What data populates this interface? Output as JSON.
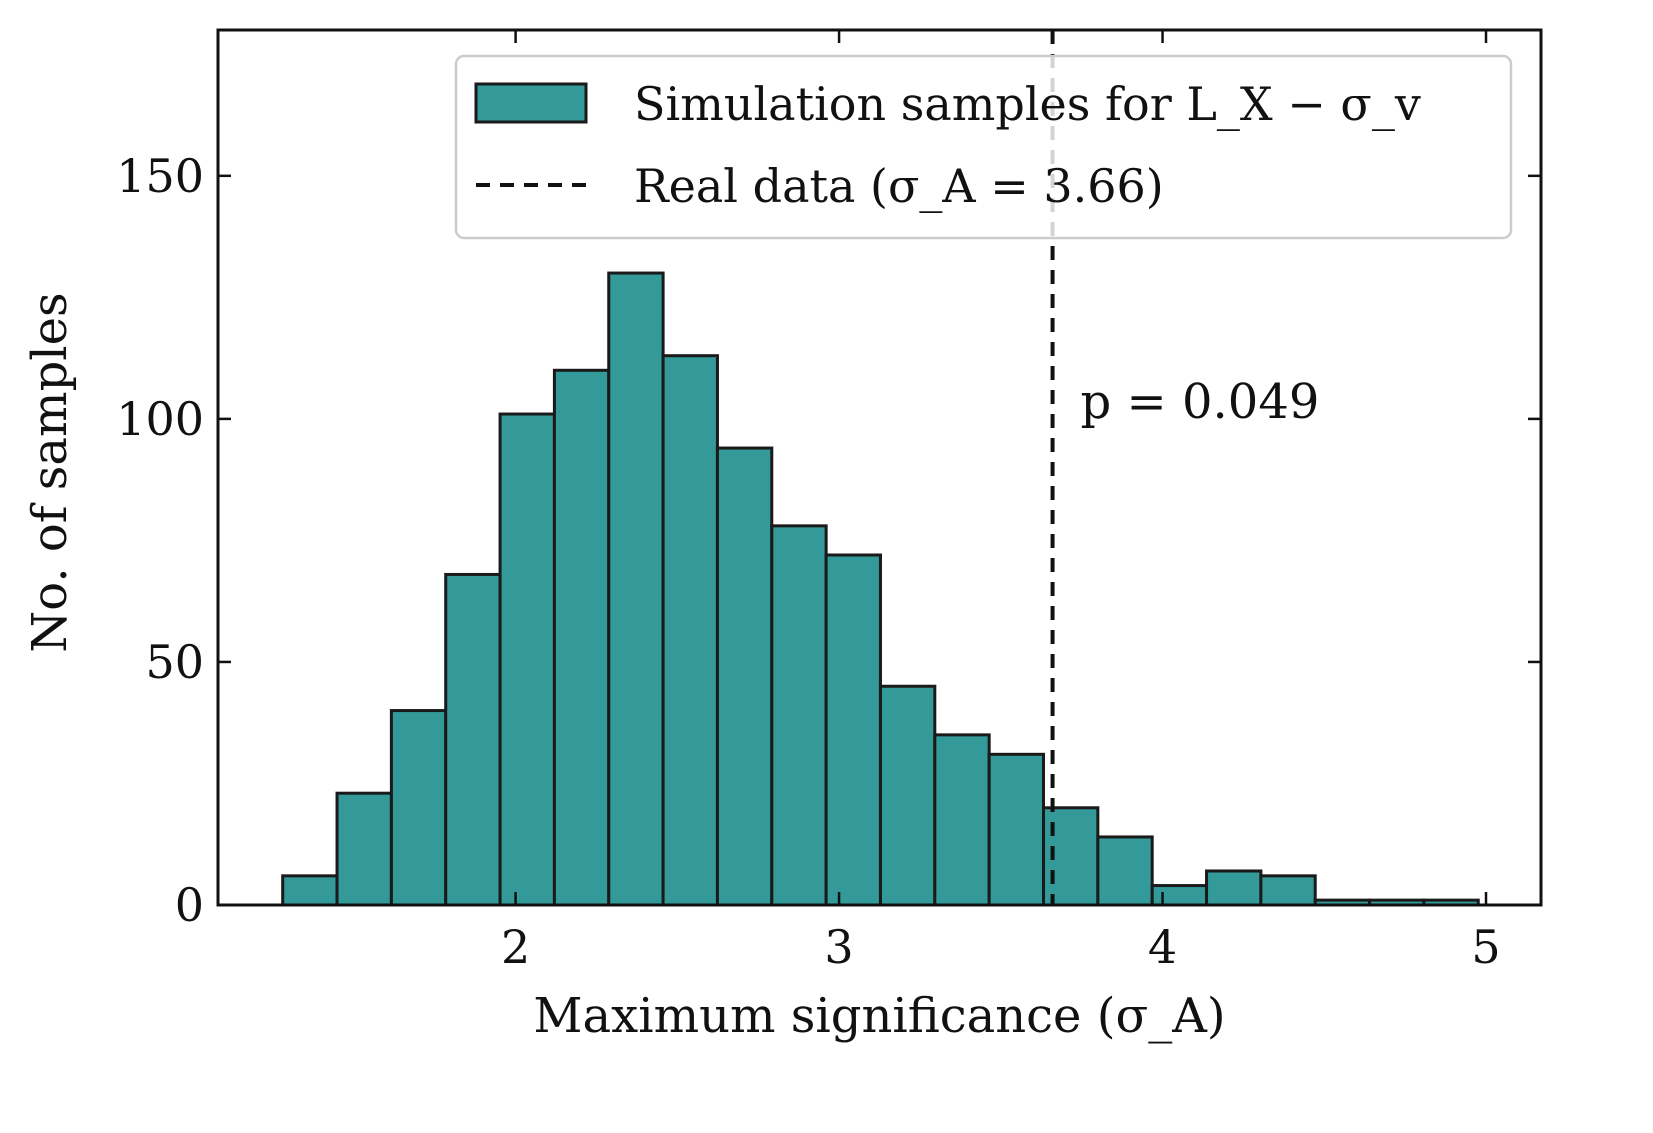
{
  "chart_data": {
    "type": "bar",
    "subtype": "histogram",
    "title": "",
    "xlabel": "Maximum significance (σ_A)",
    "ylabel": "No. of samples",
    "xlim": [
      1.08,
      5.17
    ],
    "ylim": [
      0,
      180
    ],
    "xticks": [
      2,
      3,
      4,
      5
    ],
    "yticks": [
      0,
      50,
      100,
      150
    ],
    "bin_edges": [
      1.28,
      1.448,
      1.616,
      1.784,
      1.952,
      2.12,
      2.288,
      2.456,
      2.624,
      2.792,
      2.96,
      3.128,
      3.296,
      3.464,
      3.632,
      3.8,
      3.968,
      4.136,
      4.304,
      4.472,
      4.64,
      4.808,
      4.976
    ],
    "series": [
      {
        "name": "Simulation samples for L_X − σ_v",
        "values": [
          6,
          23,
          40,
          68,
          101,
          110,
          130,
          113,
          94,
          78,
          72,
          45,
          35,
          31,
          20,
          14,
          4,
          7,
          6,
          1,
          1,
          1
        ]
      }
    ],
    "real_data": {
      "label": "Real data (σ_A = 3.66)",
      "value": 3.66
    },
    "annotation": {
      "text": "p = 0.049"
    },
    "legend_position": "top-right",
    "colors": {
      "bar_fill": "#339999",
      "bar_edge": "#1a1a1a",
      "line": "#111111",
      "legend_edge": "#cccccc"
    }
  }
}
